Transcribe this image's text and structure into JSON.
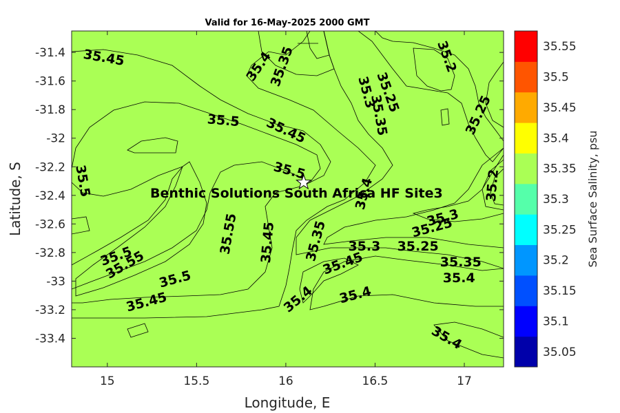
{
  "title": "Valid for 16-May-2025 2000 GMT",
  "xlabel": "Longitude, E",
  "ylabel": "Latitude, S",
  "colorbar_label": "Sea Surface Salinity, psu",
  "site_label": "Benthic Solutions South Africa HF Site3",
  "chart_data": {
    "type": "contour-map",
    "x_ticks": [
      "15",
      "15.5",
      "16",
      "16.5",
      "17"
    ],
    "x_tick_values": [
      15,
      15.5,
      16,
      16.5,
      17
    ],
    "xlim": [
      14.8,
      17.22
    ],
    "y_ticks": [
      "-31.4",
      "-31.6",
      "-31.8",
      "-32",
      "-32.2",
      "-32.4",
      "-32.6",
      "-32.8",
      "-33",
      "-33.2",
      "-33.4"
    ],
    "y_tick_values": [
      -31.4,
      -31.6,
      -31.8,
      -32,
      -32.2,
      -32.4,
      -32.6,
      -32.8,
      -33,
      -33.2,
      -33.4
    ],
    "ylim": [
      -33.6,
      -31.25
    ],
    "colorbar": {
      "levels": [
        "35.05",
        "35.1",
        "35.15",
        "35.2",
        "35.25",
        "35.3",
        "35.35",
        "35.4",
        "35.45",
        "35.5",
        "35.55"
      ],
      "colors": [
        "#0000aa",
        "#0000ff",
        "#0050ff",
        "#0096ff",
        "#00ffff",
        "#55ffaa",
        "#aaff55",
        "#ffff00",
        "#ffaa00",
        "#ff5500",
        "#ff0000"
      ]
    },
    "site": {
      "lon": 16.1,
      "lat": -32.31
    },
    "contour_labels": [
      {
        "text": "35.45",
        "lon": 14.98,
        "lat": -31.44,
        "rot": 10
      },
      {
        "text": "35.4",
        "lon": 15.85,
        "lat": -31.5,
        "rot": -55
      },
      {
        "text": "35.35",
        "lon": 15.98,
        "lat": -31.5,
        "rot": -70
      },
      {
        "text": "35.5",
        "lon": 15.65,
        "lat": -31.88,
        "rot": 5
      },
      {
        "text": "35.45",
        "lon": 16.0,
        "lat": -31.95,
        "rot": 25
      },
      {
        "text": "35.5",
        "lon": 16.02,
        "lat": -32.23,
        "rot": 15
      },
      {
        "text": "35.5",
        "lon": 14.86,
        "lat": -32.3,
        "rot": 80
      },
      {
        "text": "35.3",
        "lon": 16.45,
        "lat": -31.68,
        "rot": 75
      },
      {
        "text": "35.25",
        "lon": 16.57,
        "lat": -31.68,
        "rot": 70
      },
      {
        "text": "35.35",
        "lon": 16.52,
        "lat": -31.84,
        "rot": 80
      },
      {
        "text": "35.2",
        "lon": 16.9,
        "lat": -31.43,
        "rot": 70
      },
      {
        "text": "35.25",
        "lon": 17.08,
        "lat": -31.84,
        "rot": -65
      },
      {
        "text": "35.2",
        "lon": 17.16,
        "lat": -32.33,
        "rot": -85
      },
      {
        "text": "35.4",
        "lon": 16.44,
        "lat": -32.39,
        "rot": -75
      },
      {
        "text": "35.3",
        "lon": 16.88,
        "lat": -32.56,
        "rot": -15
      },
      {
        "text": "35.25",
        "lon": 16.82,
        "lat": -32.63,
        "rot": -15
      },
      {
        "text": "35.55",
        "lon": 15.68,
        "lat": -32.67,
        "rot": -80
      },
      {
        "text": "35.45",
        "lon": 15.9,
        "lat": -32.73,
        "rot": -85
      },
      {
        "text": "35.35",
        "lon": 16.17,
        "lat": -32.72,
        "rot": -75
      },
      {
        "text": "35.3",
        "lon": 16.44,
        "lat": -32.76,
        "rot": 0
      },
      {
        "text": "35.25",
        "lon": 16.74,
        "lat": -32.76,
        "rot": 0
      },
      {
        "text": "35.35",
        "lon": 16.98,
        "lat": -32.87,
        "rot": 0
      },
      {
        "text": "35.45",
        "lon": 16.32,
        "lat": -32.88,
        "rot": -20
      },
      {
        "text": "35.5",
        "lon": 15.05,
        "lat": -32.83,
        "rot": -20
      },
      {
        "text": "35.55",
        "lon": 15.1,
        "lat": -32.89,
        "rot": -30
      },
      {
        "text": "35.5",
        "lon": 15.38,
        "lat": -32.99,
        "rot": -15
      },
      {
        "text": "35.4",
        "lon": 16.97,
        "lat": -32.98,
        "rot": 0
      },
      {
        "text": "35.45",
        "lon": 15.22,
        "lat": -33.15,
        "rot": -15
      },
      {
        "text": "35.4",
        "lon": 16.07,
        "lat": -33.13,
        "rot": -40
      },
      {
        "text": "35.4",
        "lon": 16.39,
        "lat": -33.1,
        "rot": -15
      },
      {
        "text": "35.4",
        "lon": 16.9,
        "lat": -33.4,
        "rot": 30
      }
    ]
  }
}
